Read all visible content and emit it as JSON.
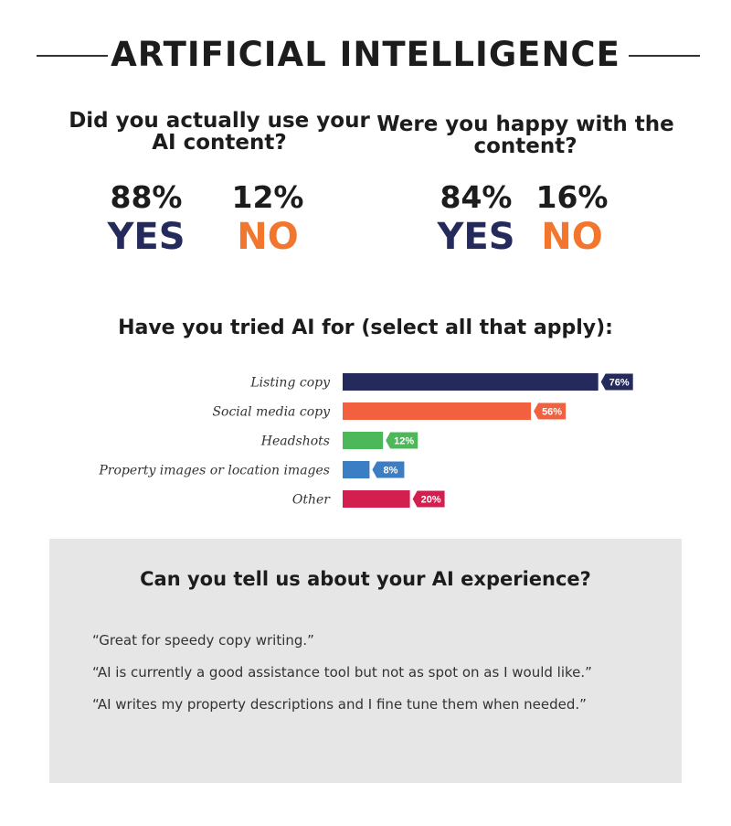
{
  "header": {
    "title": "ARTIFICIAL INTELLIGENCE"
  },
  "questions": [
    {
      "text": "Did you actually use your AI content?",
      "yes_pct": "88%",
      "no_pct": "12%",
      "yes_label": "YES",
      "no_label": "NO"
    },
    {
      "text": "Were you happy with the content?",
      "yes_pct": "84%",
      "no_pct": "16%",
      "yes_label": "YES",
      "no_label": "NO"
    }
  ],
  "chart_data": {
    "type": "bar",
    "title": "Have you tried AI for (select all that apply):",
    "categories": [
      "Listing copy",
      "Social media copy",
      "Headshots",
      "Property images or location images",
      "Other"
    ],
    "values": [
      76,
      56,
      12,
      8,
      20
    ],
    "value_labels": [
      "76%",
      "56%",
      "12%",
      "8%",
      "20%"
    ],
    "colors": [
      "#252a5c",
      "#f2603f",
      "#4cb85a",
      "#3b7ec4",
      "#d21f4f"
    ],
    "orientation": "horizontal",
    "xlim": [
      0,
      100
    ],
    "grid": false
  },
  "experience": {
    "title": "Can you tell us about your AI experience?",
    "quotes": [
      "“Great for speedy copy writing.”",
      "“AI is currently a good assistance tool but not as spot on as I would like.”",
      "“AI writes my property descriptions and I fine tune them when needed.”"
    ]
  },
  "colors": {
    "yes": "#252a5c",
    "no": "#f2762e",
    "panel": "#e6e6e6"
  }
}
